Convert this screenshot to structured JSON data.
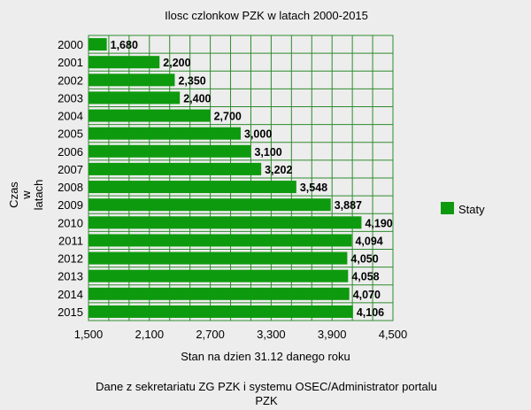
{
  "chart_data": {
    "type": "bar",
    "orientation": "horizontal",
    "title": "Ilosc czlonkow PZK w latach 2000-2015",
    "xlabel": "Stan na dzien 31.12 danego roku",
    "ylabel_lines": [
      "Czas",
      "w",
      "latach"
    ],
    "categories": [
      "2000",
      "2001",
      "2002",
      "2003",
      "2004",
      "2005",
      "2006",
      "2007",
      "2008",
      "2009",
      "2010",
      "2011",
      "2012",
      "2013",
      "2014",
      "2015"
    ],
    "series": [
      {
        "name": "Staty",
        "color": "#0e9a0e",
        "values": [
          1680,
          2200,
          2350,
          2400,
          2700,
          3000,
          3100,
          3202,
          3548,
          3887,
          4190,
          4094,
          4050,
          4058,
          4070,
          4106
        ],
        "labels": [
          "1,680",
          "2,200",
          "2,350",
          "2,400",
          "2,700",
          "3,000",
          "3,100",
          "3,202",
          "3,548",
          "3,887",
          "4,190",
          "4,094",
          "4,050",
          "4,058",
          "4,070",
          "4,106"
        ]
      }
    ],
    "xlim": [
      1500,
      4500
    ],
    "x_ticks": [
      1500,
      2100,
      2700,
      3300,
      3900,
      4500
    ],
    "x_tick_labels": [
      "1,500",
      "2,100",
      "2,700",
      "3,300",
      "3,900",
      "4,500"
    ],
    "grid": true,
    "grid_color": "#2e8b2e",
    "legend": "right",
    "footer_lines": [
      "Dane z sekretariatu ZG PZK i systemu OSEC/Administrator portalu",
      "PZK"
    ]
  }
}
